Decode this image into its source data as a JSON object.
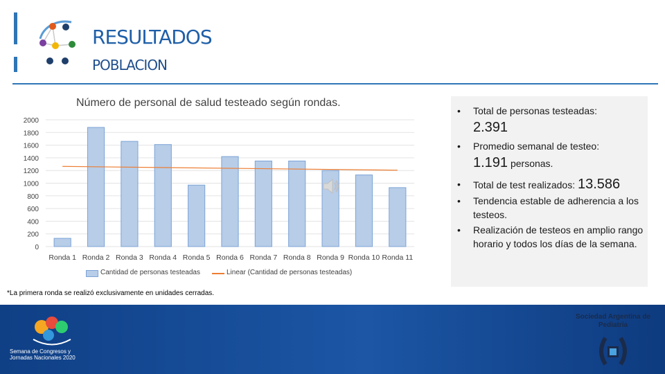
{
  "header": {
    "title": "RESULTADOS",
    "subtitle": "POBLACION"
  },
  "chart_data": {
    "type": "bar",
    "title": "Número de personal de salud testeado según rondas.",
    "categories": [
      "Ronda 1",
      "Ronda 2",
      "Ronda 3",
      "Ronda 4",
      "Ronda 5",
      "Ronda 6",
      "Ronda 7",
      "Ronda 8",
      "Ronda 9",
      "Ronda 10",
      "Ronda 11"
    ],
    "series": [
      {
        "name": "Cantidad de personas testeadas",
        "values": [
          130,
          1880,
          1660,
          1610,
          970,
          1420,
          1350,
          1350,
          1200,
          1130,
          930
        ],
        "color": "#b7cde8"
      }
    ],
    "trendline": {
      "name": "Linear (Cantidad de personas testeadas)",
      "start": 1265,
      "end": 1205,
      "color": "#ed7d31"
    },
    "y_ticks": [
      "0",
      "200",
      "400",
      "600",
      "800",
      "1000",
      "1200",
      "1400",
      "1600",
      "1800",
      "2000"
    ],
    "ylim": [
      0,
      2000
    ],
    "grid": true,
    "legend_position": "bottom"
  },
  "legend": {
    "bars_label": "Cantidad de personas testeadas",
    "line_label": "Linear (Cantidad de personas testeadas)"
  },
  "footnote": "*La primera ronda se realizó exclusivamente en unidades cerradas.",
  "summary": {
    "bullet": "•",
    "total_personas_label": "Total de personas testeadas:",
    "total_personas_value": "2.391",
    "promedio_label": "Promedio semanal de testeo:",
    "promedio_value": "1.191",
    "promedio_unit": "personas.",
    "total_test_label": "Total de test realizados:",
    "total_test_value": "13.586",
    "tendencia": "Tendencia estable de adherencia a los testeos.",
    "realizacion": "Realización de testeos en amplio rango horario y todos los días de la semana."
  },
  "footer": {
    "sap_name": "Sociedad Argentina de Pediatría",
    "event_name": "Semana de Congresos y Jornadas Nacionales 2020"
  },
  "icons": {
    "speaker": "speaker-icon",
    "logo": "molecule-logo"
  }
}
